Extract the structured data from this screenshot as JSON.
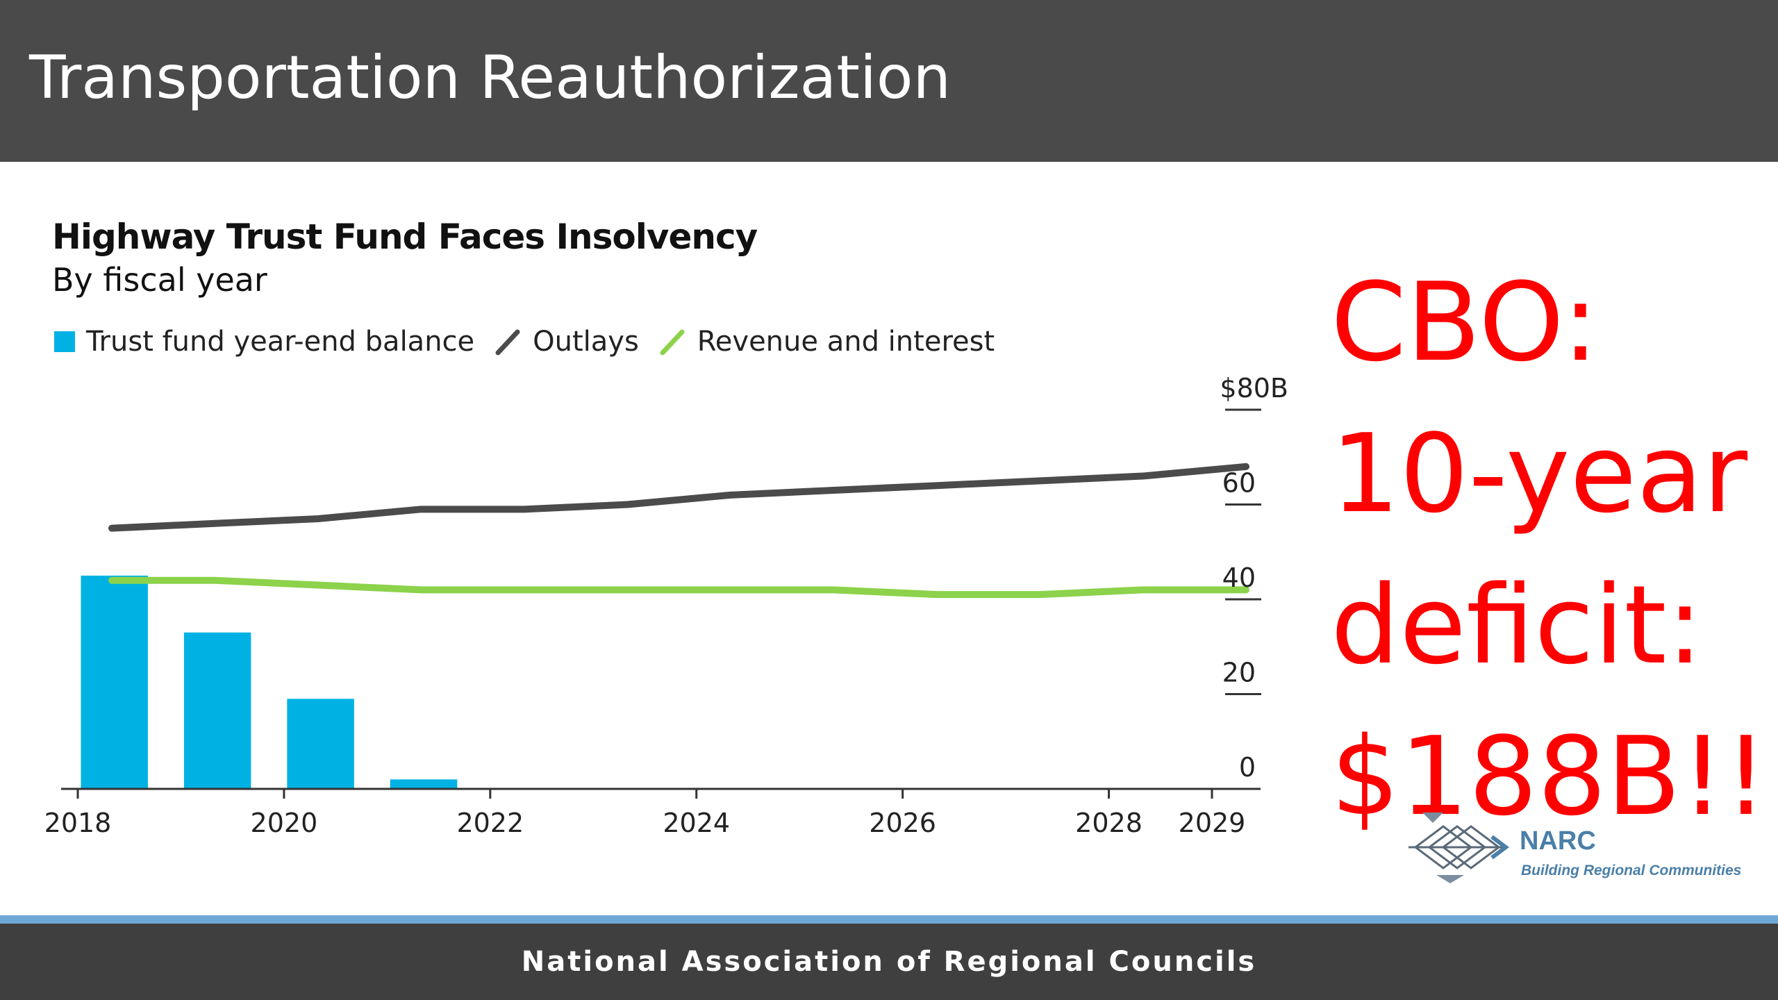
{
  "slide": {
    "title": "Transportation Reauthorization",
    "footer": "National Association of Regional Councils"
  },
  "callout": {
    "lines": [
      "CBO:",
      "10-year",
      "deficit:",
      "$188B!!"
    ],
    "color": "#ff0000"
  },
  "logo": {
    "name": "NARC",
    "tagline": "Building Regional Communities"
  },
  "chart_data": {
    "type": "bar",
    "title": "Highway Trust Fund Faces Insolvency",
    "subtitle": "By fiscal year",
    "legend_position": "top-left",
    "ylim": [
      0,
      80
    ],
    "xlim": [
      2018,
      2029
    ],
    "y_ticks": [
      {
        "value": 80,
        "label": "$80B"
      },
      {
        "value": 60,
        "label": "60"
      },
      {
        "value": 40,
        "label": "40"
      },
      {
        "value": 20,
        "label": "20"
      },
      {
        "value": 0,
        "label": "0"
      }
    ],
    "x_ticks": [
      {
        "value": 2018,
        "label": "2018"
      },
      {
        "value": 2020,
        "label": "2020"
      },
      {
        "value": 2022,
        "label": "2022"
      },
      {
        "value": 2024,
        "label": "2024"
      },
      {
        "value": 2026,
        "label": "2026"
      },
      {
        "value": 2028,
        "label": "2028"
      },
      {
        "value": 2029,
        "label": "2029"
      }
    ],
    "series": [
      {
        "name": "Trust fund year-end balance",
        "kind": "bar",
        "color": "#00b2e3",
        "points": [
          {
            "x": 2018,
            "y": 45
          },
          {
            "x": 2019,
            "y": 33
          },
          {
            "x": 2020,
            "y": 19
          },
          {
            "x": 2021,
            "y": 2
          }
        ]
      },
      {
        "name": "Outlays",
        "kind": "line",
        "color": "#4b4b4b",
        "points": [
          {
            "x": 2018,
            "y": 55
          },
          {
            "x": 2019,
            "y": 56
          },
          {
            "x": 2020,
            "y": 57
          },
          {
            "x": 2021,
            "y": 59
          },
          {
            "x": 2022,
            "y": 59
          },
          {
            "x": 2023,
            "y": 60
          },
          {
            "x": 2024,
            "y": 62
          },
          {
            "x": 2025,
            "y": 63
          },
          {
            "x": 2026,
            "y": 64
          },
          {
            "x": 2027,
            "y": 65
          },
          {
            "x": 2028,
            "y": 66
          },
          {
            "x": 2029,
            "y": 68
          }
        ]
      },
      {
        "name": "Revenue and interest",
        "kind": "line",
        "color": "#8cd24a",
        "points": [
          {
            "x": 2018,
            "y": 44
          },
          {
            "x": 2019,
            "y": 44
          },
          {
            "x": 2020,
            "y": 43
          },
          {
            "x": 2021,
            "y": 42
          },
          {
            "x": 2022,
            "y": 42
          },
          {
            "x": 2023,
            "y": 42
          },
          {
            "x": 2024,
            "y": 42
          },
          {
            "x": 2025,
            "y": 42
          },
          {
            "x": 2026,
            "y": 41
          },
          {
            "x": 2027,
            "y": 41
          },
          {
            "x": 2028,
            "y": 42
          },
          {
            "x": 2029,
            "y": 42
          }
        ]
      }
    ]
  }
}
